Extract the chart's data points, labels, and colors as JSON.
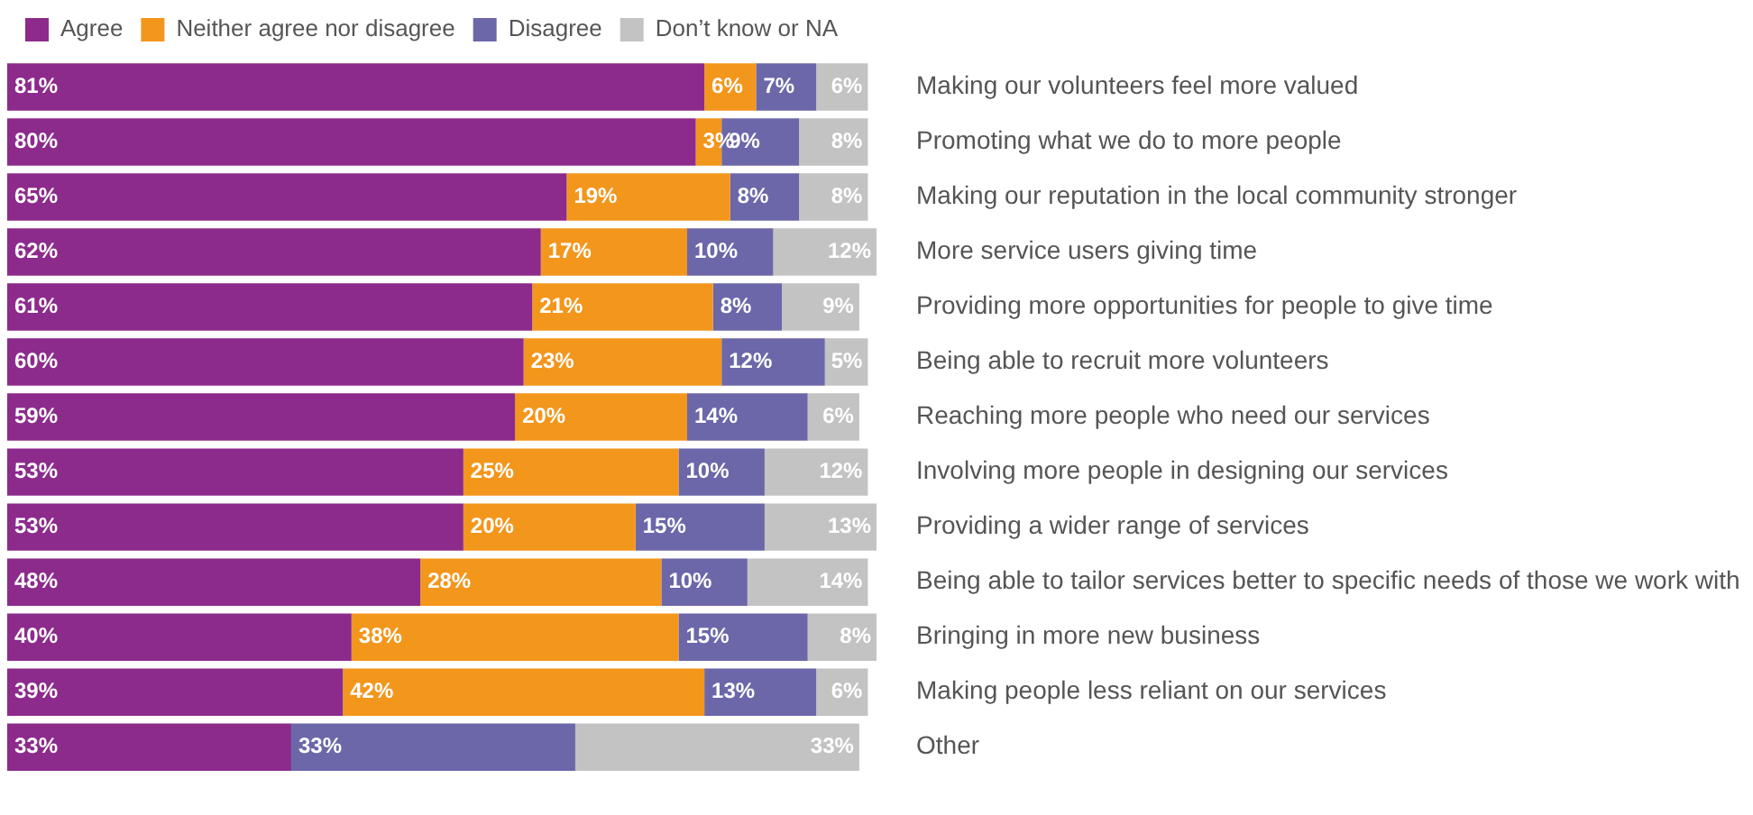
{
  "chart_data": {
    "type": "bar",
    "orientation": "horizontal",
    "stacked": true,
    "legend": "top",
    "tick_labels": "y",
    "categories": [
      "Making our volunteers feel more valued",
      "Promoting what we do to more people",
      "Making our reputation in the local community stronger",
      "More service users giving time",
      "Providing more opportunities for people to give time",
      "Being able to recruit more volunteers",
      "Reaching more people who need our services",
      "Involving more people in designing our services",
      "Providing a wider range of services",
      "Being able to tailor services better to specific needs of those we work with",
      "Bringing in more new business",
      "Making people less reliant on our services",
      "Other"
    ],
    "series": [
      {
        "name": "Agree",
        "color": "#8c2b8c",
        "values": [
          81,
          80,
          65,
          62,
          61,
          60,
          59,
          53,
          53,
          48,
          40,
          39,
          33
        ],
        "value_labels": [
          "81%",
          "80%",
          "65%",
          "62%",
          "61%",
          "60%",
          "59%",
          "53%",
          "53%",
          "48%",
          "40%",
          "39%",
          "33%"
        ]
      },
      {
        "name": "Neither agree nor disagree",
        "color": "#f3961c",
        "values": [
          6,
          3,
          19,
          17,
          21,
          23,
          20,
          25,
          20,
          28,
          38,
          42,
          null
        ],
        "value_labels": [
          "6%",
          "3%",
          "19%",
          "17%",
          "21%",
          "23%",
          "20%",
          "25%",
          "20%",
          "28%",
          "38%",
          "42%",
          null
        ]
      },
      {
        "name": "Disagree",
        "color": "#6b67a9",
        "values": [
          7,
          9,
          8,
          10,
          8,
          12,
          14,
          10,
          15,
          10,
          15,
          13,
          33
        ],
        "value_labels": [
          "7%",
          "9%",
          "8%",
          "10%",
          "8%",
          "12%",
          "14%",
          "10%",
          "15%",
          "10%",
          "15%",
          "13%",
          "33%"
        ]
      },
      {
        "name": "Don’t know or NA",
        "color": "#c3c3c3",
        "values": [
          6,
          8,
          8,
          12,
          9,
          5,
          6,
          12,
          13,
          14,
          8,
          6,
          33
        ],
        "value_labels": [
          "6%",
          "8%",
          "8%",
          "12%",
          "9%",
          "5%",
          "6%",
          "12%",
          "13%",
          "14%",
          "8%",
          "6%",
          "33%"
        ]
      }
    ]
  }
}
